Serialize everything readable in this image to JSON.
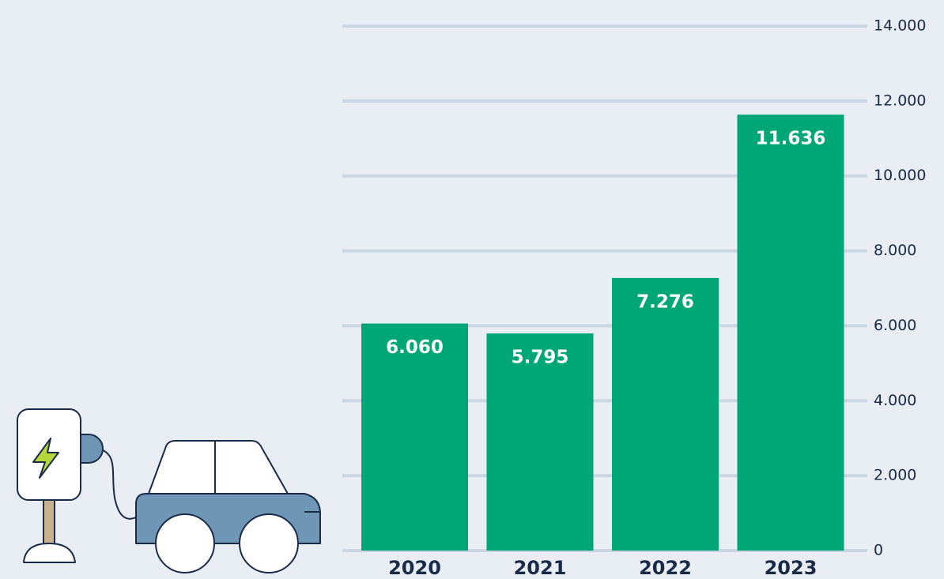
{
  "chart_data": {
    "type": "bar",
    "categories": [
      "2020",
      "2021",
      "2022",
      "2023"
    ],
    "values": [
      6060,
      5795,
      7276,
      11636
    ],
    "value_labels": [
      "6.060",
      "5.795",
      "7.276",
      "11.636"
    ],
    "color": "#00a776",
    "ylim": [
      0,
      14000
    ],
    "yticks": [
      0,
      {
        "value": 2000,
        "label": "2.000"
      },
      {
        "value": 4000,
        "label": "4.000"
      },
      {
        "value": 6000,
        "label": "6.000"
      },
      {
        "value": 8000,
        "label": "8.000"
      },
      {
        "value": 10000,
        "label": "10.000"
      },
      {
        "value": 12000,
        "label": "12.000"
      },
      {
        "value": 14000,
        "label": "14.000"
      }
    ],
    "grid": true
  }
}
